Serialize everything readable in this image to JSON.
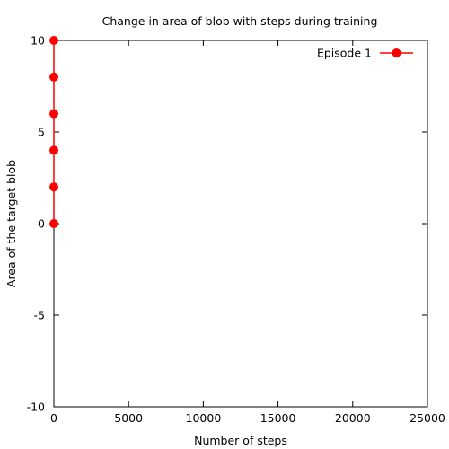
{
  "chart_data": {
    "type": "line",
    "title": "Change in area of blob with steps during training",
    "xlabel": "Number of steps",
    "ylabel": "Area of the target blob",
    "xlim": [
      0,
      25000
    ],
    "ylim": [
      -10,
      10
    ],
    "xticks": [
      0,
      5000,
      10000,
      15000,
      20000,
      25000
    ],
    "yticks": [
      -10,
      -5,
      0,
      5,
      10
    ],
    "grid": false,
    "legend": "top-right",
    "series": [
      {
        "name": "Episode 1",
        "color": "#ff0000",
        "marker": "circle",
        "x": [
          0,
          0,
          0,
          0,
          0,
          0
        ],
        "y": [
          0,
          2,
          4,
          6,
          8,
          10
        ]
      }
    ]
  }
}
